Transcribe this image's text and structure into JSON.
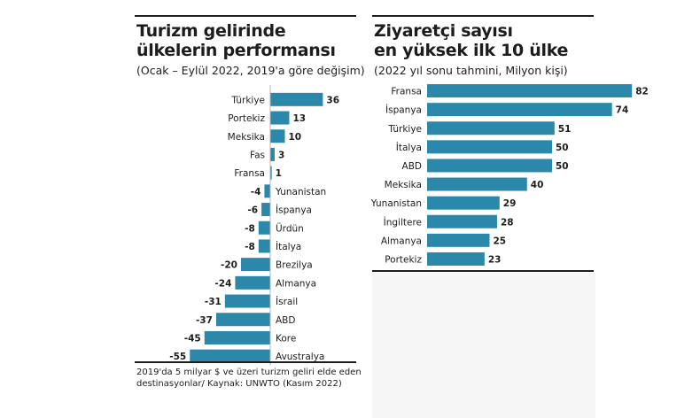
{
  "left_panel": {
    "title_line1": "Turizm gelirinde",
    "title_line2": "ülkelerin performansı",
    "subtitle": "(Ocak – Eylül 2022, 2019'a göre değişim)",
    "footnote_line1": "2019'da 5 milyar $ ve üzeri turizm geliri elde eden",
    "footnote_line2": "destinasyonlar/ Kaynak: UNWTO (Kasım 2022)"
  },
  "right_panel": {
    "title_line1": "Ziyaretçi sayısı",
    "title_line2": "en yüksek ilk 10 ülke",
    "subtitle": "(2022 yıl sonu tahmini, Milyon kişi)"
  },
  "colors": {
    "bar": "#2b88ab",
    "text": "#1d1d1b"
  },
  "chart_data": [
    {
      "type": "bar",
      "orientation": "horizontal",
      "title": "Turizm gelirinde ülkelerin performansı",
      "subtitle": "(Ocak – Eylül 2022, 2019'a göre değişim)",
      "categories": [
        "Türkiye",
        "Portekiz",
        "Meksika",
        "Fas",
        "Fransa",
        "Yunanistan",
        "İspanya",
        "Ürdün",
        "İtalya",
        "Brezilya",
        "Almanya",
        "İsrail",
        "ABD",
        "Kore",
        "Avustralya"
      ],
      "values": [
        36,
        13,
        10,
        3,
        1,
        -4,
        -6,
        -8,
        -8,
        -20,
        -24,
        -31,
        -37,
        -45,
        -55
      ],
      "value_labels": [
        "36",
        "13",
        "10",
        "3",
        "1",
        "-4",
        "-6",
        "-8",
        "-8",
        "-20",
        "-24",
        "-31",
        "-37",
        "-45",
        "-55"
      ],
      "xlim": [
        -55,
        36
      ],
      "grid": false
    },
    {
      "type": "bar",
      "orientation": "horizontal",
      "title": "Ziyaretçi sayısı en yüksek ilk 10 ülke",
      "subtitle": "(2022 yıl sonu tahmini, Milyon kişi)",
      "categories": [
        "Fransa",
        "İspanya",
        "Türkiye",
        "İtalya",
        "ABD",
        "Meksika",
        "Yunanistan",
        "İngiltere",
        "Almanya",
        "Portekiz"
      ],
      "values": [
        82,
        74,
        51,
        50,
        50,
        40,
        29,
        28,
        25,
        23
      ],
      "value_labels": [
        "82",
        "74",
        "51",
        "50",
        "50",
        "40",
        "29",
        "28",
        "25",
        "23"
      ],
      "xlim": [
        0,
        82
      ],
      "grid": false
    }
  ]
}
